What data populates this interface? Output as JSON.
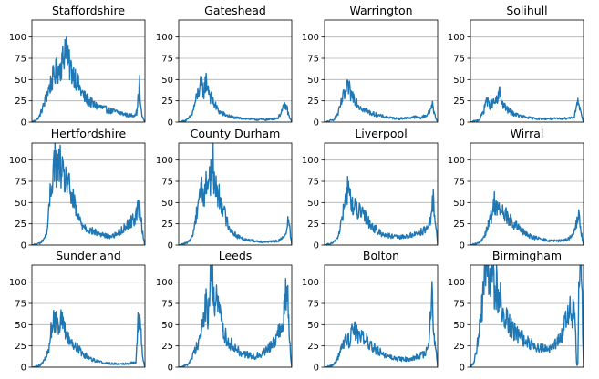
{
  "chart_data": [
    {
      "type": "line",
      "title": "Staffordshire",
      "ylim": [
        0,
        120
      ],
      "yticks": [
        0,
        25,
        50,
        75,
        100
      ],
      "grid": "y",
      "color": "#1f77b4",
      "keypoints": [
        [
          0,
          0
        ],
        [
          3,
          2
        ],
        [
          6,
          5
        ],
        [
          10,
          18
        ],
        [
          14,
          35
        ],
        [
          18,
          50
        ],
        [
          22,
          60
        ],
        [
          25,
          65
        ],
        [
          28,
          75
        ],
        [
          30,
          99
        ],
        [
          32,
          70
        ],
        [
          35,
          60
        ],
        [
          38,
          55
        ],
        [
          42,
          40
        ],
        [
          46,
          30
        ],
        [
          50,
          25
        ],
        [
          55,
          20
        ],
        [
          60,
          18
        ],
        [
          65,
          15
        ],
        [
          70,
          13
        ],
        [
          75,
          12
        ],
        [
          80,
          10
        ],
        [
          85,
          8
        ],
        [
          90,
          8
        ],
        [
          93,
          12
        ],
        [
          95,
          45
        ],
        [
          96,
          20
        ],
        [
          97,
          10
        ],
        [
          98,
          5
        ],
        [
          100,
          0
        ]
      ]
    },
    {
      "type": "line",
      "title": "Gateshead",
      "ylim": [
        0,
        120
      ],
      "yticks": [
        0,
        25,
        50,
        75,
        100
      ],
      "grid": "y",
      "color": "#1f77b4",
      "keypoints": [
        [
          0,
          0
        ],
        [
          4,
          1
        ],
        [
          8,
          3
        ],
        [
          12,
          10
        ],
        [
          15,
          25
        ],
        [
          18,
          38
        ],
        [
          20,
          44
        ],
        [
          22,
          35
        ],
        [
          24,
          48
        ],
        [
          26,
          42
        ],
        [
          28,
          30
        ],
        [
          32,
          20
        ],
        [
          36,
          12
        ],
        [
          42,
          8
        ],
        [
          50,
          5
        ],
        [
          60,
          4
        ],
        [
          70,
          3
        ],
        [
          80,
          3
        ],
        [
          88,
          5
        ],
        [
          92,
          15
        ],
        [
          94,
          20
        ],
        [
          96,
          15
        ],
        [
          98,
          5
        ],
        [
          100,
          0
        ]
      ]
    },
    {
      "type": "line",
      "title": "Warrington",
      "ylim": [
        0,
        120
      ],
      "yticks": [
        0,
        25,
        50,
        75,
        100
      ],
      "grid": "y",
      "color": "#1f77b4",
      "keypoints": [
        [
          0,
          0
        ],
        [
          4,
          1
        ],
        [
          8,
          3
        ],
        [
          12,
          10
        ],
        [
          16,
          28
        ],
        [
          19,
          35
        ],
        [
          21,
          42
        ],
        [
          23,
          33
        ],
        [
          26,
          30
        ],
        [
          30,
          20
        ],
        [
          36,
          14
        ],
        [
          42,
          10
        ],
        [
          50,
          7
        ],
        [
          58,
          5
        ],
        [
          66,
          4
        ],
        [
          74,
          5
        ],
        [
          80,
          6
        ],
        [
          85,
          5
        ],
        [
          90,
          8
        ],
        [
          93,
          12
        ],
        [
          95,
          22
        ],
        [
          97,
          10
        ],
        [
          100,
          0
        ]
      ]
    },
    {
      "type": "line",
      "title": "Solihull",
      "ylim": [
        0,
        120
      ],
      "yticks": [
        0,
        25,
        50,
        75,
        100
      ],
      "grid": "y",
      "color": "#1f77b4",
      "keypoints": [
        [
          0,
          0
        ],
        [
          4,
          1
        ],
        [
          8,
          3
        ],
        [
          12,
          14
        ],
        [
          14,
          28
        ],
        [
          16,
          20
        ],
        [
          20,
          22
        ],
        [
          24,
          25
        ],
        [
          26,
          36
        ],
        [
          28,
          22
        ],
        [
          32,
          15
        ],
        [
          38,
          10
        ],
        [
          44,
          7
        ],
        [
          52,
          5
        ],
        [
          60,
          4
        ],
        [
          70,
          4
        ],
        [
          80,
          4
        ],
        [
          88,
          5
        ],
        [
          92,
          6
        ],
        [
          94,
          25
        ],
        [
          96,
          20
        ],
        [
          98,
          8
        ],
        [
          100,
          0
        ]
      ]
    },
    {
      "type": "line",
      "title": "Hertfordshire",
      "ylim": [
        0,
        120
      ],
      "yticks": [
        0,
        25,
        50,
        75,
        100
      ],
      "grid": "y",
      "color": "#1f77b4",
      "keypoints": [
        [
          0,
          0
        ],
        [
          4,
          1
        ],
        [
          8,
          3
        ],
        [
          12,
          10
        ],
        [
          14,
          22
        ],
        [
          16,
          55
        ],
        [
          18,
          80
        ],
        [
          20,
          103
        ],
        [
          22,
          85
        ],
        [
          25,
          95
        ],
        [
          28,
          75
        ],
        [
          31,
          80
        ],
        [
          34,
          60
        ],
        [
          37,
          50
        ],
        [
          40,
          35
        ],
        [
          44,
          25
        ],
        [
          50,
          18
        ],
        [
          56,
          15
        ],
        [
          62,
          12
        ],
        [
          68,
          10
        ],
        [
          74,
          12
        ],
        [
          80,
          18
        ],
        [
          85,
          25
        ],
        [
          90,
          30
        ],
        [
          93,
          40
        ],
        [
          95,
          45
        ],
        [
          97,
          25
        ],
        [
          99,
          5
        ],
        [
          100,
          0
        ]
      ]
    },
    {
      "type": "line",
      "title": "County Durham",
      "ylim": [
        0,
        120
      ],
      "yticks": [
        0,
        25,
        50,
        75,
        100
      ],
      "grid": "y",
      "color": "#1f77b4",
      "keypoints": [
        [
          0,
          0
        ],
        [
          4,
          1
        ],
        [
          8,
          3
        ],
        [
          12,
          10
        ],
        [
          15,
          30
        ],
        [
          18,
          60
        ],
        [
          20,
          70
        ],
        [
          22,
          55
        ],
        [
          25,
          75
        ],
        [
          28,
          80
        ],
        [
          30,
          100
        ],
        [
          32,
          70
        ],
        [
          35,
          60
        ],
        [
          38,
          50
        ],
        [
          42,
          30
        ],
        [
          46,
          18
        ],
        [
          52,
          10
        ],
        [
          58,
          7
        ],
        [
          66,
          5
        ],
        [
          74,
          4
        ],
        [
          82,
          4
        ],
        [
          88,
          5
        ],
        [
          92,
          8
        ],
        [
          95,
          12
        ],
        [
          97,
          40
        ],
        [
          99,
          10
        ],
        [
          100,
          0
        ]
      ]
    },
    {
      "type": "line",
      "title": "Liverpool",
      "ylim": [
        0,
        120
      ],
      "yticks": [
        0,
        25,
        50,
        75,
        100
      ],
      "grid": "y",
      "color": "#1f77b4",
      "keypoints": [
        [
          0,
          0
        ],
        [
          4,
          1
        ],
        [
          8,
          3
        ],
        [
          12,
          10
        ],
        [
          16,
          35
        ],
        [
          19,
          55
        ],
        [
          21,
          75
        ],
        [
          23,
          50
        ],
        [
          26,
          45
        ],
        [
          30,
          40
        ],
        [
          34,
          35
        ],
        [
          38,
          30
        ],
        [
          42,
          22
        ],
        [
          48,
          15
        ],
        [
          54,
          12
        ],
        [
          60,
          10
        ],
        [
          66,
          9
        ],
        [
          72,
          10
        ],
        [
          78,
          12
        ],
        [
          84,
          15
        ],
        [
          90,
          18
        ],
        [
          94,
          28
        ],
        [
          96,
          55
        ],
        [
          98,
          30
        ],
        [
          100,
          0
        ]
      ]
    },
    {
      "type": "line",
      "title": "Wirral",
      "ylim": [
        0,
        120
      ],
      "yticks": [
        0,
        25,
        50,
        75,
        100
      ],
      "grid": "y",
      "color": "#1f77b4",
      "keypoints": [
        [
          0,
          0
        ],
        [
          4,
          1
        ],
        [
          8,
          3
        ],
        [
          12,
          10
        ],
        [
          16,
          25
        ],
        [
          19,
          35
        ],
        [
          21,
          52
        ],
        [
          23,
          45
        ],
        [
          26,
          40
        ],
        [
          30,
          38
        ],
        [
          34,
          30
        ],
        [
          38,
          25
        ],
        [
          44,
          18
        ],
        [
          50,
          12
        ],
        [
          56,
          9
        ],
        [
          62,
          7
        ],
        [
          70,
          5
        ],
        [
          78,
          5
        ],
        [
          84,
          6
        ],
        [
          90,
          10
        ],
        [
          94,
          25
        ],
        [
          96,
          35
        ],
        [
          98,
          15
        ],
        [
          100,
          0
        ]
      ]
    },
    {
      "type": "line",
      "title": "Sunderland",
      "ylim": [
        0,
        120
      ],
      "yticks": [
        0,
        25,
        50,
        75,
        100
      ],
      "grid": "y",
      "color": "#1f77b4",
      "keypoints": [
        [
          0,
          0
        ],
        [
          4,
          1
        ],
        [
          8,
          3
        ],
        [
          12,
          10
        ],
        [
          15,
          20
        ],
        [
          17,
          45
        ],
        [
          20,
          55
        ],
        [
          22,
          60
        ],
        [
          24,
          50
        ],
        [
          26,
          58
        ],
        [
          28,
          45
        ],
        [
          30,
          40
        ],
        [
          34,
          30
        ],
        [
          38,
          25
        ],
        [
          42,
          20
        ],
        [
          46,
          15
        ],
        [
          52,
          10
        ],
        [
          58,
          7
        ],
        [
          64,
          5
        ],
        [
          72,
          4
        ],
        [
          80,
          4
        ],
        [
          88,
          5
        ],
        [
          92,
          6
        ],
        [
          94,
          55
        ],
        [
          96,
          48
        ],
        [
          98,
          10
        ],
        [
          100,
          0
        ]
      ]
    },
    {
      "type": "line",
      "title": "Leeds",
      "ylim": [
        0,
        120
      ],
      "yticks": [
        0,
        25,
        50,
        75,
        100
      ],
      "grid": "y",
      "color": "#1f77b4",
      "keypoints": [
        [
          0,
          0
        ],
        [
          4,
          1
        ],
        [
          8,
          3
        ],
        [
          12,
          12
        ],
        [
          16,
          25
        ],
        [
          20,
          40
        ],
        [
          22,
          55
        ],
        [
          24,
          75
        ],
        [
          26,
          60
        ],
        [
          28,
          100
        ],
        [
          30,
          108
        ],
        [
          32,
          70
        ],
        [
          34,
          80
        ],
        [
          36,
          65
        ],
        [
          38,
          55
        ],
        [
          40,
          40
        ],
        [
          44,
          30
        ],
        [
          48,
          25
        ],
        [
          54,
          18
        ],
        [
          60,
          15
        ],
        [
          66,
          12
        ],
        [
          72,
          15
        ],
        [
          78,
          20
        ],
        [
          84,
          30
        ],
        [
          88,
          40
        ],
        [
          92,
          45
        ],
        [
          94,
          80
        ],
        [
          96,
          93
        ],
        [
          98,
          30
        ],
        [
          100,
          0
        ]
      ]
    },
    {
      "type": "line",
      "title": "Bolton",
      "ylim": [
        0,
        120
      ],
      "yticks": [
        0,
        25,
        50,
        75,
        100
      ],
      "grid": "y",
      "color": "#1f77b4",
      "keypoints": [
        [
          0,
          0
        ],
        [
          4,
          1
        ],
        [
          8,
          3
        ],
        [
          12,
          12
        ],
        [
          16,
          25
        ],
        [
          20,
          35
        ],
        [
          22,
          30
        ],
        [
          25,
          50
        ],
        [
          28,
          40
        ],
        [
          30,
          35
        ],
        [
          34,
          38
        ],
        [
          38,
          30
        ],
        [
          42,
          25
        ],
        [
          46,
          20
        ],
        [
          52,
          15
        ],
        [
          58,
          12
        ],
        [
          64,
          10
        ],
        [
          70,
          9
        ],
        [
          76,
          10
        ],
        [
          82,
          12
        ],
        [
          88,
          15
        ],
        [
          92,
          25
        ],
        [
          95,
          80
        ],
        [
          97,
          40
        ],
        [
          100,
          0
        ]
      ]
    },
    {
      "type": "line",
      "title": "Birmingham",
      "ylim": [
        0,
        120
      ],
      "yticks": [
        0,
        25,
        50,
        75,
        100
      ],
      "grid": "y",
      "color": "#1f77b4",
      "keypoints": [
        [
          0,
          0
        ],
        [
          3,
          5
        ],
        [
          6,
          25
        ],
        [
          9,
          60
        ],
        [
          12,
          90
        ],
        [
          15,
          120
        ],
        [
          17,
          100
        ],
        [
          19,
          118
        ],
        [
          21,
          85
        ],
        [
          23,
          95
        ],
        [
          25,
          70
        ],
        [
          27,
          80
        ],
        [
          30,
          60
        ],
        [
          33,
          55
        ],
        [
          36,
          45
        ],
        [
          40,
          40
        ],
        [
          44,
          35
        ],
        [
          50,
          30
        ],
        [
          56,
          25
        ],
        [
          62,
          22
        ],
        [
          68,
          20
        ],
        [
          74,
          25
        ],
        [
          80,
          35
        ],
        [
          85,
          55
        ],
        [
          88,
          70
        ],
        [
          90,
          60
        ],
        [
          92,
          75
        ],
        [
          94,
          0
        ],
        [
          95,
          5
        ],
        [
          96,
          125
        ],
        [
          97,
          130
        ],
        [
          98,
          140
        ],
        [
          99,
          60
        ],
        [
          100,
          0
        ]
      ]
    }
  ]
}
